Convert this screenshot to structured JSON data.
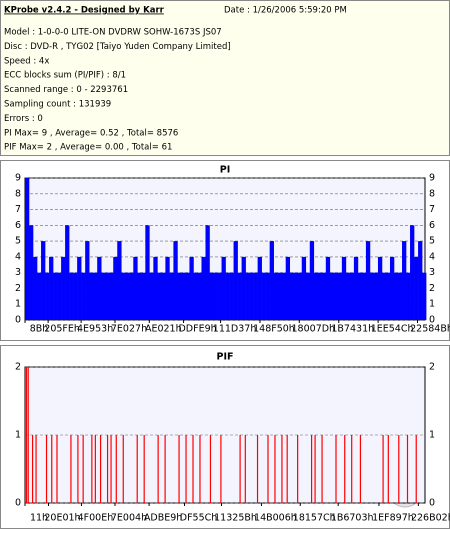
{
  "header": {
    "title": "KProbe v2.4.2 - Designed by Karr",
    "date": "Date : 1/26/2006 5:59:20 PM",
    "lines": [
      "Model : 1-0-0-0 LITE-ON DVDRW SOHW-1673S JS07",
      "Disc : DVD-R , TYG02 [Taiyo Yuden Company Limited]",
      "Speed : 4x",
      "ECC blocks sum (PI/PIF) : 8/1",
      "Scanned range : 0 - 2293761",
      "Sampling count : 131939",
      "Errors : 0",
      "PI Max= 9 , Average= 0.52 , Total= 8576",
      "PIF Max= 2 , Average= 0.00 , Total= 61"
    ]
  },
  "chart_data": [
    {
      "type": "bar",
      "title": "PI",
      "color": "#0000ff",
      "grid": true,
      "xlim": [
        0,
        2293761
      ],
      "ylim": [
        0,
        9
      ],
      "yticks": [
        0,
        1,
        2,
        3,
        4,
        5,
        6,
        7,
        8,
        9
      ],
      "xticks": [
        {
          "value": 139,
          "label": "8Bh"
        },
        {
          "value": 132606,
          "label": "205FEh"
        },
        {
          "value": 321875,
          "label": "4E953h"
        },
        {
          "value": 516135,
          "label": "7E027h"
        },
        {
          "value": 712737,
          "label": "AE021h"
        },
        {
          "value": 909289,
          "label": "DDFE9h"
        },
        {
          "value": 1121591,
          "label": "111D37h"
        },
        {
          "value": 1347408,
          "label": "148F50h"
        },
        {
          "value": 1572989,
          "label": "18007Dh"
        },
        {
          "value": 1799217,
          "label": "1B7431h"
        },
        {
          "value": 2024780,
          "label": "1EE54Ch"
        },
        {
          "value": 2250827,
          "label": "22584Bh"
        }
      ],
      "x": [
        0,
        23000,
        46000,
        69000,
        92000,
        115000,
        138000,
        161000,
        184000,
        207000,
        230000,
        253000,
        276000,
        299000,
        322000,
        345000,
        368000,
        391000,
        414000,
        437000,
        460000,
        483000,
        506000,
        529000,
        552000,
        575000,
        598000,
        621000,
        644000,
        667000,
        690000,
        713000,
        736000,
        759000,
        782000,
        805000,
        828000,
        851000,
        874000,
        897000,
        920000,
        943000,
        966000,
        989000,
        1012000,
        1035000,
        1058000,
        1081000,
        1104000,
        1127000,
        1150000,
        1173000,
        1196000,
        1219000,
        1242000,
        1265000,
        1288000,
        1311000,
        1334000,
        1357000,
        1380000,
        1403000,
        1426000,
        1449000,
        1472000,
        1495000,
        1518000,
        1541000,
        1564000,
        1587000,
        1610000,
        1633000,
        1656000,
        1679000,
        1702000,
        1725000,
        1748000,
        1771000,
        1794000,
        1817000,
        1840000,
        1863000,
        1886000,
        1909000,
        1932000,
        1955000,
        1978000,
        2001000,
        2024000,
        2047000,
        2070000,
        2093000,
        2116000,
        2139000,
        2162000,
        2185000,
        2208000,
        2231000,
        2254000,
        2277000
      ],
      "values": [
        9,
        6,
        4,
        3,
        5,
        3,
        4,
        3,
        3,
        4,
        6,
        3,
        3,
        4,
        3,
        5,
        3,
        3,
        4,
        3,
        3,
        3,
        4,
        5,
        3,
        3,
        3,
        4,
        3,
        3,
        6,
        3,
        4,
        3,
        3,
        4,
        3,
        5,
        3,
        3,
        3,
        4,
        3,
        3,
        4,
        6,
        3,
        3,
        3,
        4,
        3,
        3,
        5,
        3,
        4,
        3,
        3,
        3,
        4,
        3,
        3,
        5,
        3,
        3,
        3,
        4,
        3,
        3,
        3,
        4,
        3,
        5,
        3,
        3,
        3,
        4,
        3,
        3,
        3,
        4,
        3,
        3,
        4,
        3,
        3,
        5,
        3,
        3,
        4,
        3,
        3,
        4,
        3,
        3,
        5,
        3,
        6,
        4,
        5,
        3
      ]
    },
    {
      "type": "bar",
      "title": "PIF",
      "color": "#ff0000",
      "grid": true,
      "xlim": [
        0,
        2293761
      ],
      "ylim": [
        0,
        2
      ],
      "yticks": [
        0,
        1,
        2
      ],
      "xticks": [
        {
          "value": 17,
          "label": "11h"
        },
        {
          "value": 134657,
          "label": "20E01h"
        },
        {
          "value": 323598,
          "label": "4F00Eh"
        },
        {
          "value": 516100,
          "label": "7E004h"
        },
        {
          "value": 711657,
          "label": "ADBE9h"
        },
        {
          "value": 914780,
          "label": "DF55Ch"
        },
        {
          "value": 1127003,
          "label": "11325Bh"
        },
        {
          "value": 1355782,
          "label": "14B006h"
        },
        {
          "value": 1578364,
          "label": "18157Ch"
        },
        {
          "value": 1795843,
          "label": "1B6703h"
        },
        {
          "value": 2029719,
          "label": "1EF897h"
        },
        {
          "value": 2255618,
          "label": "226B02h"
        }
      ],
      "x": [
        5000,
        15000,
        40000,
        60000,
        120000,
        150000,
        180000,
        260000,
        300000,
        330000,
        380000,
        400000,
        430000,
        470000,
        490000,
        520000,
        560000,
        640000,
        680000,
        760000,
        800000,
        880000,
        920000,
        960000,
        1000000,
        1060000,
        1120000,
        1230000,
        1260000,
        1330000,
        1390000,
        1430000,
        1470000,
        1500000,
        1560000,
        1640000,
        1660000,
        1700000,
        1780000,
        1830000,
        1870000,
        1920000,
        2050000,
        2080000,
        2140000,
        2190000,
        2240000
      ],
      "values": [
        2,
        2,
        1,
        1,
        1,
        1,
        1,
        1,
        1,
        1,
        1,
        1,
        1,
        1,
        1,
        1,
        1,
        1,
        1,
        1,
        1,
        1,
        1,
        1,
        1,
        1,
        1,
        1,
        1,
        1,
        1,
        1,
        1,
        1,
        1,
        1,
        1,
        1,
        1,
        1,
        1,
        1,
        1,
        1,
        1,
        1,
        1
      ]
    }
  ]
}
